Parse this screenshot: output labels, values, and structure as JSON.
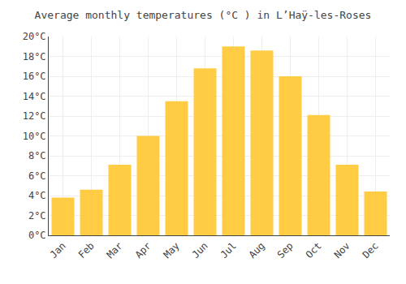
{
  "chart_data": {
    "type": "bar",
    "title": "Average monthly temperatures (°C ) in L’Haÿ-les-Roses",
    "categories": [
      "Jan",
      "Feb",
      "Mar",
      "Apr",
      "May",
      "Jun",
      "Jul",
      "Aug",
      "Sep",
      "Oct",
      "Nov",
      "Dec"
    ],
    "values": [
      3.8,
      4.6,
      7.1,
      10.0,
      13.5,
      16.8,
      19.0,
      18.6,
      16.0,
      12.1,
      7.1,
      4.4
    ],
    "color": "#FFCC44",
    "ylim": [
      0,
      20
    ],
    "yticks": [
      {
        "value": 0,
        "label": "0°C"
      },
      {
        "value": 2,
        "label": "2°C"
      },
      {
        "value": 4,
        "label": "4°C"
      },
      {
        "value": 6,
        "label": "6°C"
      },
      {
        "value": 8,
        "label": "8°C"
      },
      {
        "value": 10,
        "label": "10°C"
      },
      {
        "value": 12,
        "label": "12°C"
      },
      {
        "value": 14,
        "label": "14°C"
      },
      {
        "value": 16,
        "label": "16°C"
      },
      {
        "value": 18,
        "label": "18°C"
      },
      {
        "value": 20,
        "label": "20°C"
      }
    ],
    "grid": true
  }
}
